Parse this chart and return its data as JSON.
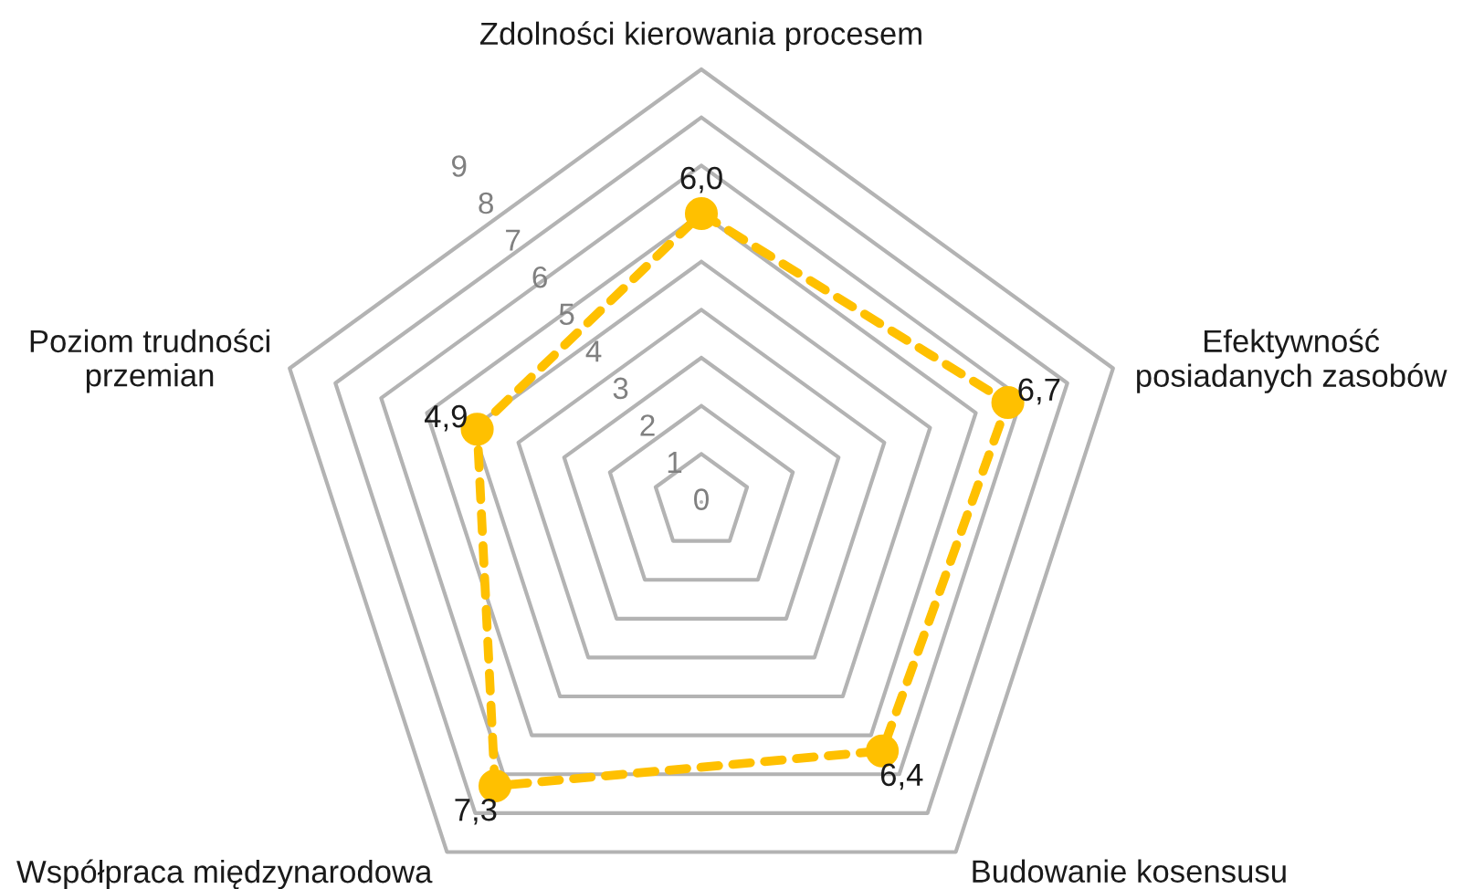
{
  "chart_data": {
    "type": "radar",
    "categories": [
      "Zdolności kierowania procesem",
      "Efektywność\nposiadanych zasobów",
      "Budowanie kosensusu",
      "Współpraca międzynarodowa",
      "Poziom trudności\nprzemian"
    ],
    "series": [
      {
        "color": "#ffc000",
        "values": [
          6.0,
          6.7,
          6.4,
          7.3,
          4.9
        ],
        "value_labels": [
          "6,0",
          "6,7",
          "6,4",
          "7,3",
          "4,9"
        ]
      }
    ],
    "ylim": [
      0,
      9
    ],
    "yticks": [
      0,
      1,
      2,
      3,
      4,
      5,
      6,
      7,
      8,
      9
    ],
    "grid": true,
    "marker": "circle",
    "line_style": "dashed"
  }
}
